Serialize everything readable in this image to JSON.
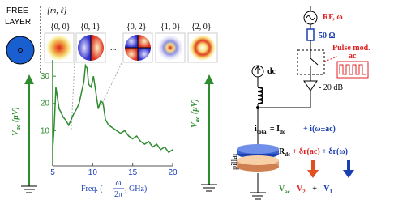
{
  "chart_data": {
    "type": "line",
    "ylabel": "V",
    "ylabel_sub": "ac",
    "ylabel_unit": " (μV)",
    "xlabel_pre": "Freq. (",
    "xlabel_num": "ω",
    "xlabel_den": "2π",
    "xlabel_post": ", GHz)",
    "x": [
      5.0,
      5.2,
      5.4,
      5.6,
      5.8,
      6.0,
      6.3,
      6.6,
      7.0,
      7.3,
      7.6,
      8.0,
      8.3,
      8.6,
      8.9,
      9.1,
      9.3,
      9.5,
      9.8,
      10.1,
      10.4,
      10.7,
      11.0,
      11.3,
      11.6,
      12.0,
      12.5,
      13.0,
      13.5,
      14.0,
      14.5,
      15.0,
      15.5,
      16.0,
      16.5,
      17.0,
      17.5,
      18.0,
      18.5,
      19.0,
      19.5,
      20.0
    ],
    "series": [
      {
        "color": "#2e8b2e",
        "values": [
          3,
          12,
          26,
          22,
          18,
          17,
          15,
          14,
          12,
          14,
          16,
          18,
          20,
          24,
          28,
          34,
          33,
          27,
          26,
          30,
          24,
          18,
          21,
          20,
          14,
          12,
          11,
          10,
          9,
          10,
          8,
          7,
          8,
          6,
          5,
          6,
          4,
          5,
          3,
          4,
          2,
          3
        ]
      }
    ],
    "xlim": [
      5,
      20
    ],
    "xticks": [
      5,
      10,
      15,
      20
    ],
    "ylim": [
      -3,
      36
    ],
    "yticks": [
      10,
      20,
      30
    ]
  },
  "free_layer": {
    "line1": "FREE",
    "line2": "LAYER"
  },
  "modes": {
    "header": "{m, ℓ}",
    "ellipsis": "...",
    "labels": [
      "{0, 0}",
      "{0, 1}",
      "{0, 2}",
      "{1, 0}",
      "{2, 0}"
    ]
  },
  "side_label": {
    "main": "V",
    "sub": "ac",
    "unit": " (μV)"
  },
  "circuit": {
    "rf": "RF, ω",
    "resistor": "50 Ω",
    "pulse1": "Pulse mod.",
    "pulse2": "ac",
    "attenuator": "- 20 dB",
    "dc": "dc",
    "pillar": "pillar",
    "current": [
      "i",
      "total",
      " = I",
      "dc",
      "+ i(ω±ac)"
    ],
    "resistance": [
      "R",
      "dc",
      " + δr(ac)",
      " + δr(ω)"
    ],
    "voltage": [
      "V",
      "ac",
      " - ",
      "V",
      "2",
      " + ",
      "V",
      "1"
    ]
  }
}
